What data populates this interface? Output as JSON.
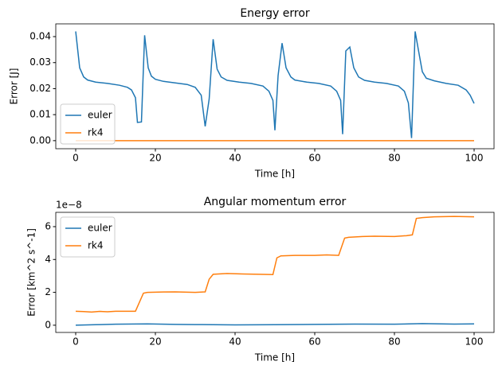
{
  "chart_data": [
    {
      "type": "line",
      "title": "Energy error",
      "xlabel": "Time [h]",
      "ylabel": "Error [J]",
      "xlim": [
        -5,
        105
      ],
      "xticks": [
        0,
        20,
        40,
        60,
        80,
        100
      ],
      "ylim": [
        -0.0031,
        0.0449
      ],
      "yticks": [
        {
          "value": 0,
          "label": "0.00"
        },
        {
          "value": 0.01,
          "label": "0.01"
        },
        {
          "value": 0.02,
          "label": "0.02"
        },
        {
          "value": 0.03,
          "label": "0.03"
        },
        {
          "value": 0.04,
          "label": "0.04"
        }
      ],
      "legend": "lower left",
      "series": [
        {
          "name": "euler",
          "color": "#1f77b4",
          "x": [
            0,
            1,
            2,
            3,
            5,
            8,
            11,
            13,
            14,
            15,
            15.5,
            16.5,
            17.3,
            18.2,
            19,
            20,
            22,
            25,
            28,
            30,
            31.5,
            32.5,
            33.5,
            34.5,
            35.5,
            36.5,
            38,
            41,
            44,
            47,
            48.5,
            49.5,
            50,
            50.8,
            51.8,
            52.8,
            54,
            55,
            58,
            61,
            64,
            65.5,
            66.5,
            67,
            67.8,
            68.8,
            69.8,
            71,
            72.5,
            75,
            78,
            81,
            82.5,
            83.5,
            84.3,
            85.2,
            86,
            87,
            88,
            90,
            93,
            96,
            98,
            99,
            100
          ],
          "values": [
            0.042,
            0.028,
            0.0245,
            0.0233,
            0.0225,
            0.022,
            0.0213,
            0.0205,
            0.0195,
            0.0165,
            0.007,
            0.0072,
            0.0405,
            0.028,
            0.0248,
            0.0236,
            0.0228,
            0.0222,
            0.0216,
            0.0205,
            0.0175,
            0.0055,
            0.016,
            0.039,
            0.0275,
            0.0245,
            0.0232,
            0.0225,
            0.022,
            0.021,
            0.019,
            0.0155,
            0.004,
            0.025,
            0.0375,
            0.028,
            0.0245,
            0.0233,
            0.0225,
            0.022,
            0.021,
            0.019,
            0.0155,
            0.0025,
            0.0345,
            0.036,
            0.028,
            0.0245,
            0.0232,
            0.0225,
            0.022,
            0.021,
            0.019,
            0.0145,
            0.001,
            0.042,
            0.035,
            0.0265,
            0.024,
            0.023,
            0.022,
            0.0213,
            0.0195,
            0.0175,
            0.0143
          ]
        },
        {
          "name": "rk4",
          "color": "#ff7f0e",
          "x": [
            0,
            100
          ],
          "values": [
            0,
            0
          ]
        }
      ]
    },
    {
      "type": "line",
      "title": "Angular momentum error",
      "xlabel": "Time [h]",
      "ylabel": "Error [km^2 s^-1]",
      "offset_label": "1e−8",
      "xlim": [
        -5,
        105
      ],
      "xticks": [
        0,
        20,
        40,
        60,
        80,
        100
      ],
      "ylim": [
        -0.44,
        6.87
      ],
      "yticks": [
        0,
        2,
        4,
        6
      ],
      "legend": "upper left",
      "series": [
        {
          "name": "euler",
          "color": "#1f77b4",
          "x": [
            0,
            5,
            10,
            18,
            25,
            30,
            40,
            50,
            60,
            70,
            80,
            87,
            95,
            100
          ],
          "values": [
            0,
            0.03,
            0.06,
            0.08,
            0.05,
            0.04,
            0.02,
            0.03,
            0.05,
            0.07,
            0.06,
            0.1,
            0.07,
            0.08
          ]
        },
        {
          "name": "rk4",
          "color": "#ff7f0e",
          "x": [
            0,
            2,
            4,
            6,
            8,
            10,
            15,
            17,
            18,
            22,
            25,
            30,
            32.5,
            33.5,
            34.5,
            38,
            42,
            46,
            49.5,
            50.5,
            51.5,
            55,
            60,
            63,
            66,
            67.5,
            68.5,
            72,
            75,
            80,
            83,
            84.5,
            85.5,
            87,
            90,
            95,
            100
          ],
          "values": [
            0.85,
            0.83,
            0.8,
            0.84,
            0.82,
            0.85,
            0.85,
            1.95,
            2.0,
            2.02,
            2.03,
            2.0,
            2.03,
            2.8,
            3.1,
            3.15,
            3.12,
            3.1,
            3.08,
            4.1,
            4.22,
            4.25,
            4.25,
            4.28,
            4.25,
            5.3,
            5.35,
            5.4,
            5.42,
            5.4,
            5.45,
            5.5,
            6.5,
            6.55,
            6.6,
            6.62,
            6.6
          ]
        }
      ]
    }
  ]
}
